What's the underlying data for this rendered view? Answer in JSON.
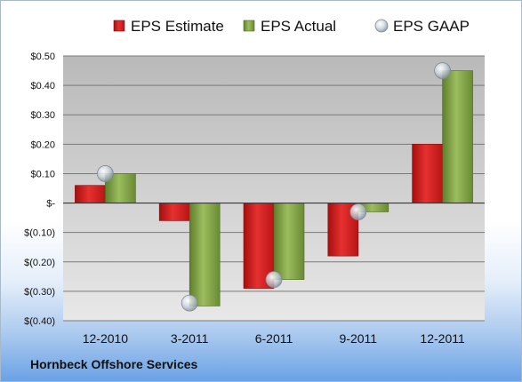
{
  "chart_data": {
    "type": "bar",
    "categories": [
      "12-2010",
      "3-2011",
      "6-2011",
      "9-2011",
      "12-2011"
    ],
    "series": [
      {
        "name": "EPS Estimate",
        "type": "bar",
        "color": "#cc1a1a",
        "values": [
          0.06,
          -0.06,
          -0.29,
          -0.18,
          0.2
        ]
      },
      {
        "name": "EPS Actual",
        "type": "bar",
        "color": "#7fa043",
        "values": [
          0.1,
          -0.35,
          -0.26,
          -0.03,
          0.45
        ]
      },
      {
        "name": "EPS GAAP",
        "type": "marker",
        "color": "#b8c2cc",
        "values": [
          0.1,
          -0.34,
          -0.26,
          -0.03,
          0.45
        ]
      }
    ],
    "ylim": [
      -0.4,
      0.5
    ],
    "yticks": [
      0.5,
      0.4,
      0.3,
      0.2,
      0.1,
      0.0,
      -0.1,
      -0.2,
      -0.3,
      -0.4
    ],
    "ytick_labels": [
      "$0.50",
      "$0.40",
      "$0.30",
      "$0.20",
      "$0.10",
      "$-",
      "$(0.10)",
      "$(0.20)",
      "$(0.30)",
      "$(0.40)"
    ],
    "grid": true,
    "legend_position": "top"
  },
  "company": "Hornbeck Offshore Services"
}
